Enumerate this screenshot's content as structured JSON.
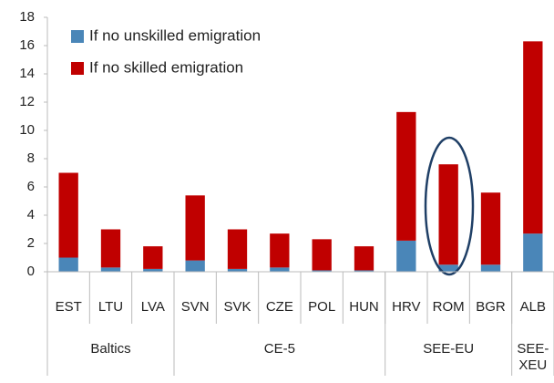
{
  "chart_data": {
    "type": "stacked_bar",
    "categories": [
      "EST",
      "LTU",
      "LVA",
      "SVN",
      "SVK",
      "CZE",
      "POL",
      "HUN",
      "HRV",
      "ROM",
      "BGR",
      "ALB"
    ],
    "groups": [
      {
        "name": "Baltics",
        "size": 3
      },
      {
        "name": "CE-5",
        "size": 5
      },
      {
        "name": "SEE-EU",
        "size": 3
      },
      {
        "name": "SEE-\nXEU",
        "size": 1
      }
    ],
    "series": [
      {
        "name": "If no unskilled emigration",
        "color": "#4a86b8",
        "values": [
          1.0,
          0.3,
          0.2,
          0.8,
          0.2,
          0.3,
          0.1,
          0.1,
          2.2,
          0.5,
          0.5,
          2.7
        ]
      },
      {
        "name": "If no skilled emigration",
        "color": "#c00000",
        "values": [
          6.0,
          2.7,
          1.6,
          4.6,
          2.8,
          2.4,
          2.2,
          1.7,
          9.1,
          7.1,
          5.1,
          13.6
        ]
      }
    ],
    "ylim": [
      0,
      18
    ],
    "yticks": [
      0,
      2,
      4,
      6,
      8,
      10,
      12,
      14,
      16,
      18
    ],
    "grid": false
  }
}
